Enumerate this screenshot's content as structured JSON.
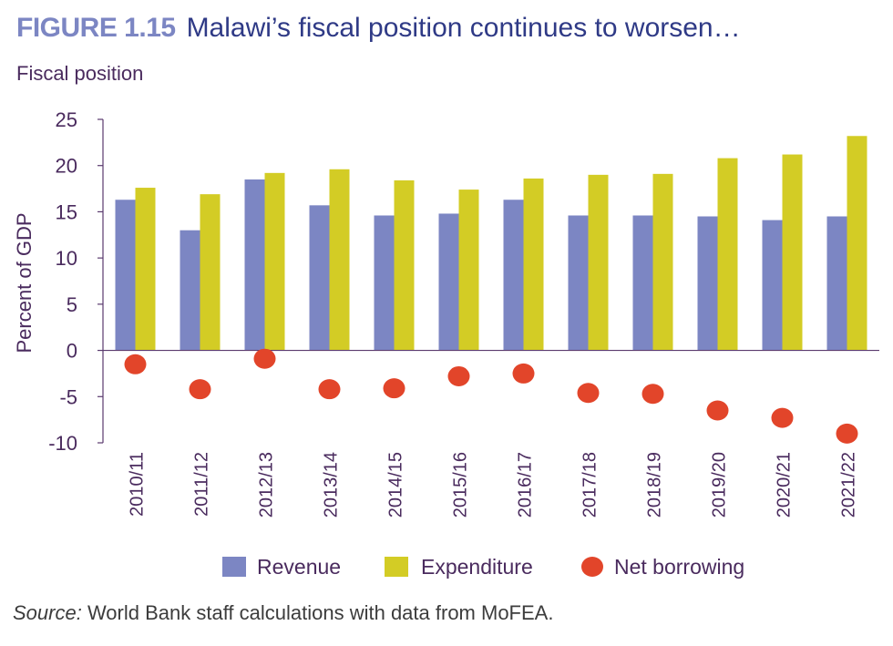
{
  "figure": {
    "label": "FIGURE 1.15",
    "title": "Malawi’s fiscal position continues to worsen…",
    "subtitle": "Fiscal position",
    "source_label": "Source:",
    "source_text": " World Bank staff calculations with data from MoFEA."
  },
  "colors": {
    "label": "#7c86c3",
    "title": "#2f3a86",
    "text": "#4a2b5e",
    "axis": "#5a3a6e",
    "revenue": "#7c86c3",
    "expenditure": "#d3cc25",
    "net_borrowing": "#e2452a"
  },
  "chart_data": {
    "type": "bar",
    "categories": [
      "2010/11",
      "2011/12",
      "2012/13",
      "2013/14",
      "2014/15",
      "2015/16",
      "2016/17",
      "2017/18",
      "2018/19",
      "2019/20",
      "2020/21",
      "2021/22"
    ],
    "series": [
      {
        "name": "Revenue",
        "kind": "bar",
        "values": [
          16.3,
          13.0,
          18.5,
          15.7,
          14.6,
          14.8,
          16.3,
          14.6,
          14.6,
          14.5,
          14.1,
          14.5
        ]
      },
      {
        "name": "Expenditure",
        "kind": "bar",
        "values": [
          17.6,
          16.9,
          19.2,
          19.6,
          18.4,
          17.4,
          18.6,
          19.0,
          19.1,
          20.8,
          21.2,
          23.2
        ]
      },
      {
        "name": "Net borrowing",
        "kind": "scatter",
        "values": [
          -1.5,
          -4.2,
          -0.9,
          -4.2,
          -4.1,
          -2.8,
          -2.5,
          -4.6,
          -4.7,
          -6.5,
          -7.3,
          -9.0
        ]
      }
    ],
    "xlabel": "",
    "ylabel": "Percent of GDP",
    "ylim": [
      -10,
      25
    ],
    "yticks": [
      25,
      20,
      15,
      10,
      5,
      0,
      -5,
      -10
    ],
    "legend": "bottom",
    "grid": false
  }
}
